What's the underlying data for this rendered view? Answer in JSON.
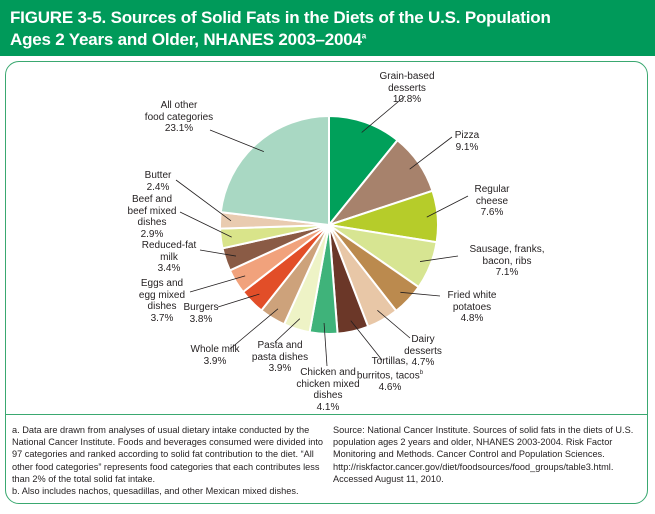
{
  "title": {
    "line1": "FIGURE 3-5. Sources of Solid Fats in the Diets of the U.S. Population",
    "line2": "Ages 2 Years and Older, NHANES 2003–2004",
    "footnote_mark": "a"
  },
  "chart_data": {
    "type": "pie",
    "title": "FIGURE 3-5. Sources of Solid Fats in the Diets of the U.S. Population Ages 2 Years and Older, NHANES 2003–2004",
    "unit": "%",
    "slices": [
      {
        "label": "Grain-based\ndesserts",
        "value": 10.8,
        "color": "#00a05a"
      },
      {
        "label": "Pizza",
        "value": 9.1,
        "color": "#a7826c"
      },
      {
        "label": "Regular\ncheese",
        "value": 7.6,
        "color": "#b6cc2a"
      },
      {
        "label": "Sausage, franks,\nbacon, ribs",
        "value": 7.1,
        "color": "#d7e592"
      },
      {
        "label": "Fried white\npotatoes",
        "value": 4.8,
        "color": "#bb8a4e"
      },
      {
        "label": "Dairy\ndesserts",
        "value": 4.7,
        "color": "#e8c7a7"
      },
      {
        "label": "Tortillas,\nburritos, tacos",
        "value": 4.6,
        "color": "#6b3728"
      },
      {
        "label": "Chicken and\nchicken mixed\ndishes",
        "value": 4.1,
        "color": "#3fb37a"
      },
      {
        "label": "Pasta and\npasta dishes",
        "value": 3.9,
        "color": "#eef3c6"
      },
      {
        "label": "Whole milk",
        "value": 3.9,
        "color": "#cda27b"
      },
      {
        "label": "Burgers",
        "value": 3.8,
        "color": "#e24e28"
      },
      {
        "label": "Eggs and\negg mixed\ndishes",
        "value": 3.7,
        "color": "#f1a27c"
      },
      {
        "label": "Reduced-fat\nmilk",
        "value": 3.4,
        "color": "#8a5b45"
      },
      {
        "label": "Beef and\nbeef mixed\ndishes",
        "value": 2.9,
        "color": "#d9e48a"
      },
      {
        "label": "Butter",
        "value": 2.4,
        "color": "#e9cbb0"
      },
      {
        "label": "All other\nfood categories",
        "value": 23.1,
        "color": "#a9d8c3"
      }
    ]
  },
  "labels": [
    {
      "name": "Grain-based\ndesserts",
      "value": "10.8%"
    },
    {
      "name": "Pizza",
      "value": "9.1%"
    },
    {
      "name": "Regular\ncheese",
      "value": "7.6%"
    },
    {
      "name": "Sausage, franks,\nbacon, ribs",
      "value": "7.1%"
    },
    {
      "name": "Fried white\npotatoes",
      "value": "4.8%"
    },
    {
      "name": "Dairy\ndesserts",
      "value": "4.7%"
    },
    {
      "name": "Tortillas,\nburritos, tacos",
      "value": "4.6%",
      "sup": "b"
    },
    {
      "name": "Chicken and\nchicken mixed\ndishes",
      "value": "4.1%"
    },
    {
      "name": "Pasta and\npasta dishes",
      "value": "3.9%"
    },
    {
      "name": "Whole milk",
      "value": "3.9%"
    },
    {
      "name": "Burgers",
      "value": "3.8%"
    },
    {
      "name": "Eggs and\negg mixed\ndishes",
      "value": "3.7%"
    },
    {
      "name": "Reduced-fat\nmilk",
      "value": "3.4%"
    },
    {
      "name": "Beef and\nbeef mixed\ndishes",
      "value": "2.9%"
    },
    {
      "name": "Butter",
      "value": "2.4%"
    },
    {
      "name": "All other\nfood categories",
      "value": "23.1%"
    }
  ],
  "notes": {
    "left_a": "a. Data are drawn from analyses of usual dietary intake conducted by the National Cancer Institute. Foods and beverages consumed were divided into 97 categories and ranked according to solid fat contribution to the diet. “All other food categories” represents food categories that each contributes less than 2% of the total solid fat intake.",
    "left_b": "b. Also includes nachos, quesadillas, and other Mexican mixed dishes.",
    "right": "Source: National Cancer Institute. Sources of solid fats in the diets of U.S. population ages 2 years and older, NHANES 2003-2004. Risk Factor Monitoring and Methods. Cancer Control and Population Sciences. http://riskfactor.cancer.gov/diet/foodsources/food_groups/table3.html. Accessed August 11, 2010."
  }
}
